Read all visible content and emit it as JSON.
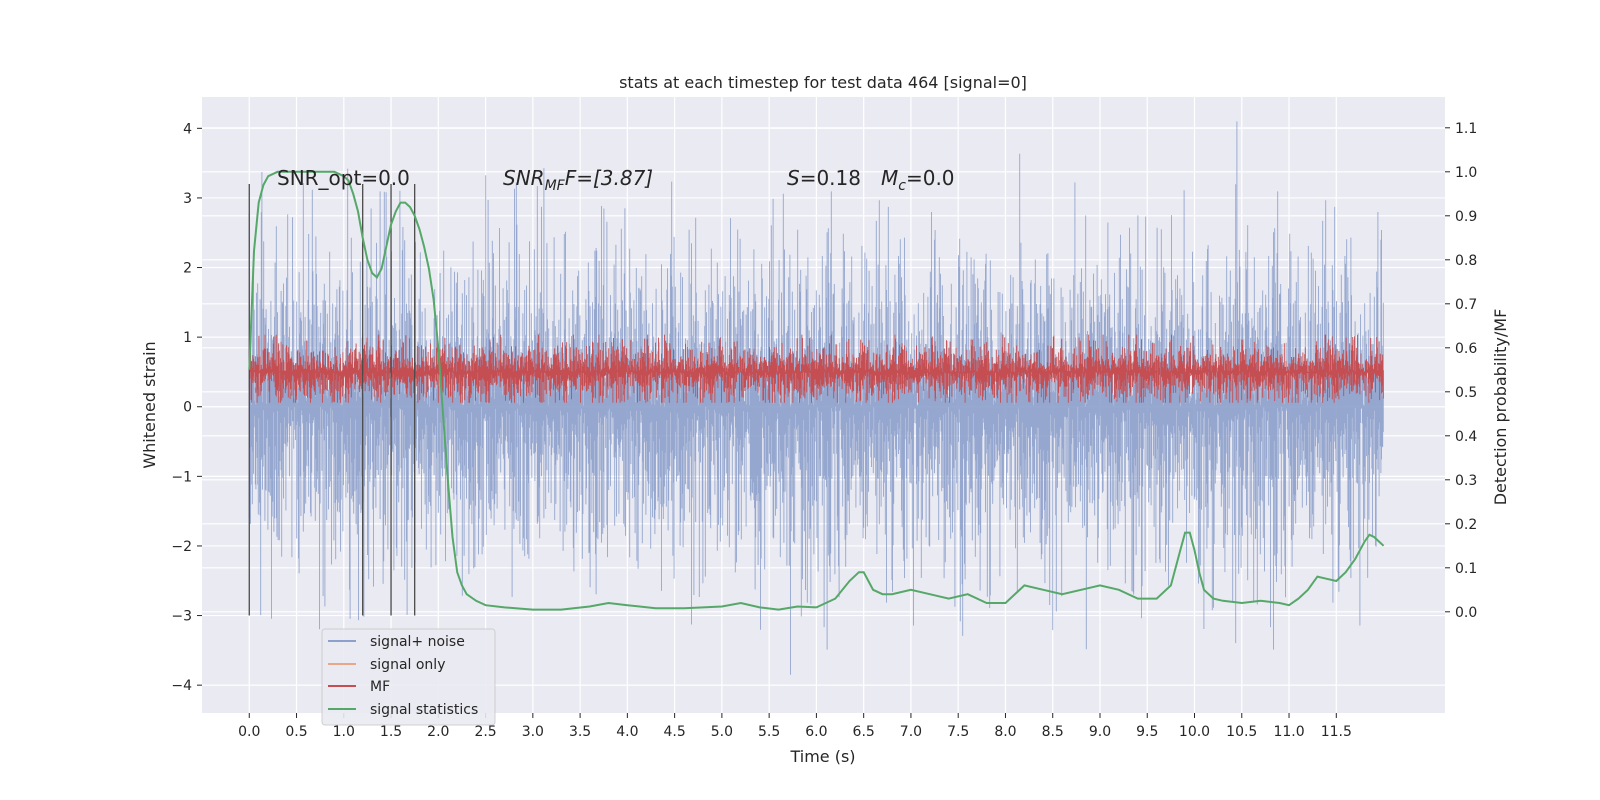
{
  "chart_data": {
    "type": "line",
    "title": "stats at each timestep for test data 464 [signal=0]",
    "xlabel": "Time (s)",
    "ylabel": "Whitened strain",
    "y2label": "Detection probability/MF",
    "xlim": [
      -0.5,
      12.65
    ],
    "ylim": [
      -4.4,
      4.45
    ],
    "y2lim": [
      -0.23,
      1.17
    ],
    "x_ticks": [
      "0.0",
      "0.5",
      "1.0",
      "1.5",
      "2.0",
      "2.5",
      "3.0",
      "3.5",
      "4.0",
      "4.5",
      "5.0",
      "5.5",
      "6.0",
      "6.5",
      "7.0",
      "7.5",
      "8.0",
      "8.5",
      "9.0",
      "9.5",
      "10.0",
      "10.5",
      "11.0",
      "11.5"
    ],
    "y_ticks": [
      "−4",
      "−3",
      "−2",
      "−1",
      "0",
      "1",
      "2",
      "3",
      "4"
    ],
    "y2_ticks": [
      "0.0",
      "0.1",
      "0.2",
      "0.3",
      "0.4",
      "0.5",
      "0.6",
      "0.7",
      "0.8",
      "0.9",
      "1.0",
      "1.1"
    ],
    "annotations": {
      "snr_opt": "SNR_opt=0.0",
      "snr_mf_sym": "SNR",
      "snr_mf_sub": "MF",
      "snr_mf_val": "F=[3.87]",
      "s_sym": "S",
      "s_val": "=0.18",
      "mc_sym": "M",
      "mc_sub": "c",
      "mc_val": "=0.0"
    },
    "vlines_x": [
      0.0,
      1.2,
      1.5,
      1.75
    ],
    "vlines_y_range": [
      -3.0,
      3.2
    ],
    "series": [
      {
        "name": "signal+ noise",
        "color": "#8da0cb",
        "axis": "left",
        "noise": {
          "t_start": 0.0,
          "t_end": 12.0,
          "std": 1.15,
          "peak_max": 4.1,
          "peak_min": -3.85
        }
      },
      {
        "name": "signal only",
        "color": "#e8a888",
        "axis": "left",
        "x": [],
        "y": []
      },
      {
        "name": "MF",
        "color": "#c44e52",
        "axis": "right",
        "band": {
          "t_start": 0.0,
          "t_end": 12.0,
          "low": 0.48,
          "high": 0.61,
          "peak_max": 0.63
        }
      },
      {
        "name": "signal statistics",
        "color": "#55a868",
        "axis": "right",
        "x": [
          0.0,
          0.05,
          0.1,
          0.15,
          0.2,
          0.3,
          0.5,
          0.7,
          0.9,
          1.0,
          1.05,
          1.1,
          1.15,
          1.2,
          1.25,
          1.3,
          1.35,
          1.4,
          1.45,
          1.5,
          1.55,
          1.6,
          1.65,
          1.7,
          1.75,
          1.8,
          1.85,
          1.9,
          1.95,
          2.0,
          2.05,
          2.1,
          2.15,
          2.2,
          2.25,
          2.3,
          2.4,
          2.5,
          2.7,
          3.0,
          3.3,
          3.6,
          3.8,
          4.0,
          4.3,
          4.6,
          5.0,
          5.2,
          5.4,
          5.6,
          5.8,
          6.0,
          6.2,
          6.35,
          6.45,
          6.5,
          6.55,
          6.6,
          6.7,
          6.8,
          7.0,
          7.2,
          7.4,
          7.6,
          7.8,
          8.0,
          8.2,
          8.4,
          8.6,
          8.8,
          9.0,
          9.2,
          9.4,
          9.6,
          9.75,
          9.85,
          9.9,
          9.95,
          10.0,
          10.05,
          10.1,
          10.2,
          10.3,
          10.5,
          10.7,
          10.9,
          11.0,
          11.1,
          11.2,
          11.3,
          11.4,
          11.5,
          11.6,
          11.7,
          11.8,
          11.85,
          11.9,
          11.95,
          12.0
        ],
        "y": [
          0.55,
          0.82,
          0.93,
          0.97,
          0.99,
          1.0,
          1.0,
          1.0,
          1.0,
          0.99,
          0.98,
          0.95,
          0.91,
          0.85,
          0.8,
          0.77,
          0.76,
          0.78,
          0.83,
          0.88,
          0.91,
          0.93,
          0.93,
          0.92,
          0.9,
          0.87,
          0.83,
          0.78,
          0.71,
          0.6,
          0.45,
          0.3,
          0.17,
          0.09,
          0.06,
          0.04,
          0.025,
          0.015,
          0.01,
          0.005,
          0.005,
          0.012,
          0.02,
          0.015,
          0.008,
          0.008,
          0.012,
          0.02,
          0.01,
          0.005,
          0.012,
          0.01,
          0.03,
          0.07,
          0.09,
          0.09,
          0.07,
          0.05,
          0.04,
          0.04,
          0.05,
          0.04,
          0.03,
          0.04,
          0.02,
          0.02,
          0.06,
          0.05,
          0.04,
          0.05,
          0.06,
          0.05,
          0.03,
          0.03,
          0.06,
          0.14,
          0.18,
          0.18,
          0.14,
          0.09,
          0.05,
          0.03,
          0.025,
          0.02,
          0.025,
          0.02,
          0.015,
          0.03,
          0.05,
          0.08,
          0.075,
          0.07,
          0.09,
          0.12,
          0.16,
          0.175,
          0.17,
          0.16,
          0.15
        ]
      }
    ],
    "legend": {
      "position": "lower-left",
      "entries": [
        "signal+ noise",
        "signal only",
        "MF",
        "signal statistics"
      ]
    },
    "grid": true,
    "background": "#eaeaf2"
  }
}
